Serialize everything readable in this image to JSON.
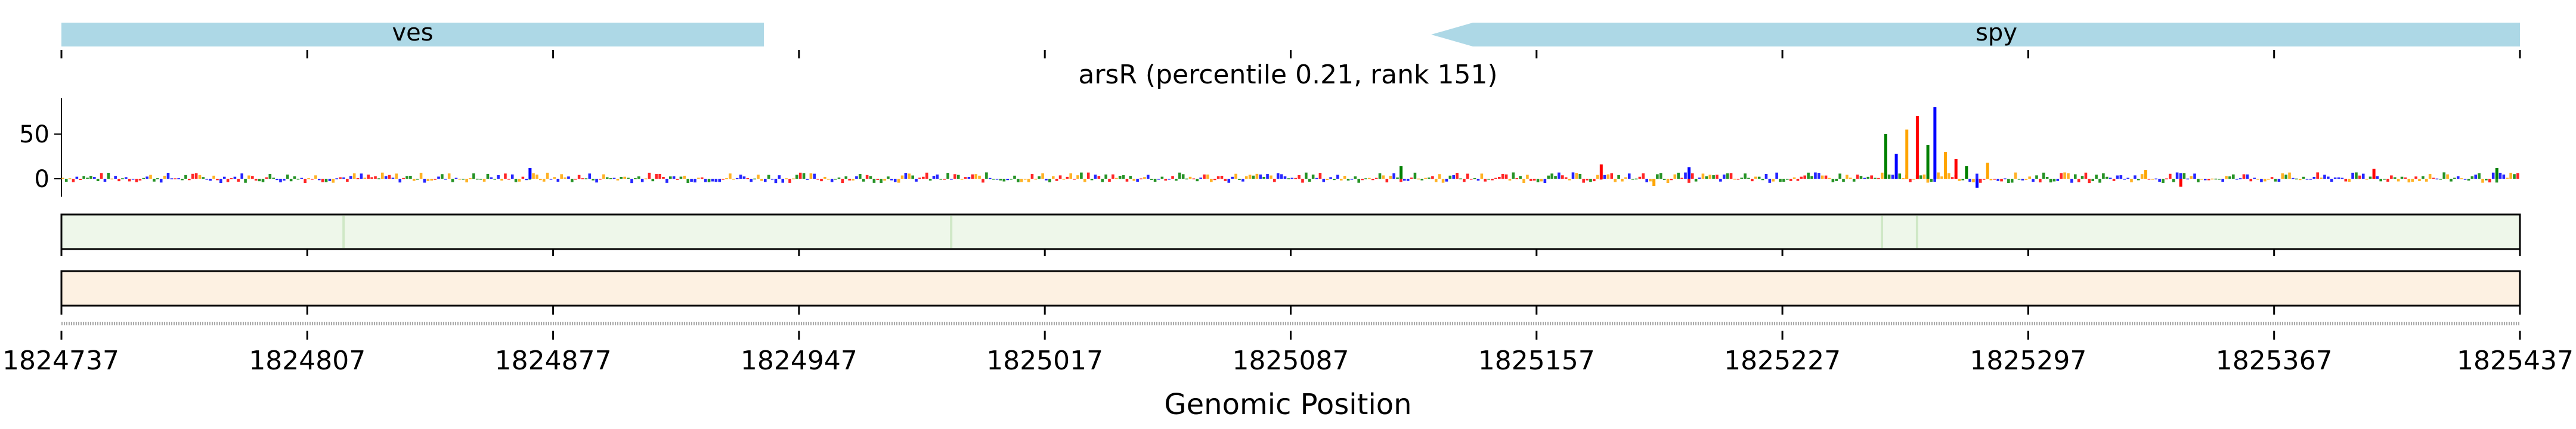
{
  "chart_data": {
    "type": "sequence-logo-track",
    "title": "arsR (percentile 0.21, rank 151)",
    "xlabel": "Genomic Position",
    "x_ticks": [
      "1824737",
      "1824807",
      "1824877",
      "1824947",
      "1825017",
      "1825087",
      "1825157",
      "1825227",
      "1825297",
      "1825367",
      "1825437"
    ],
    "xlim": [
      1824737,
      1825437
    ],
    "y_ticks": [
      "50",
      "0"
    ],
    "ylim": [
      -20,
      90
    ],
    "genes": [
      {
        "name": "ves",
        "start": 1824737,
        "end": 1824937,
        "strand": "+",
        "color": "#add8e6"
      },
      {
        "name": "spy",
        "start": 1825127,
        "end": 1825437,
        "strand": "-",
        "color": "#add8e6"
      }
    ],
    "peaks": [
      {
        "x": 1825256,
        "y": 50
      },
      {
        "x": 1825259,
        "y": 28
      },
      {
        "x": 1825262,
        "y": 55
      },
      {
        "x": 1825265,
        "y": 70
      },
      {
        "x": 1825268,
        "y": 38
      },
      {
        "x": 1825270,
        "y": 80
      },
      {
        "x": 1825273,
        "y": 30
      },
      {
        "x": 1825276,
        "y": 22
      },
      {
        "x": 1825279,
        "y": 14
      },
      {
        "x": 1825282,
        "y": -10
      },
      {
        "x": 1825285,
        "y": 18
      },
      {
        "x": 1825175,
        "y": 16
      },
      {
        "x": 1825118,
        "y": 14
      },
      {
        "x": 1824870,
        "y": 12
      },
      {
        "x": 1825330,
        "y": 10
      },
      {
        "x": 1825395,
        "y": 11
      },
      {
        "x": 1825430,
        "y": 12
      },
      {
        "x": 1825200,
        "y": 13
      },
      {
        "x": 1825190,
        "y": -8
      },
      {
        "x": 1825340,
        "y": -9
      }
    ],
    "colors": {
      "A": "#008000",
      "C": "#0000ff",
      "G": "#ffa500",
      "T": "#ff0000",
      "track1": "#eef7ea",
      "track2": "#fdf1e2",
      "gene": "#add8e6"
    }
  }
}
